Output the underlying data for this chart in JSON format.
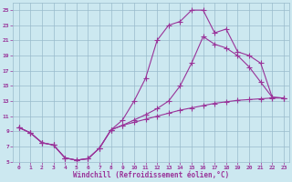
{
  "xlabel": "Windchill (Refroidissement éolien,°C)",
  "bg_color": "#cce8f0",
  "grid_color": "#99bbcc",
  "line_color": "#993399",
  "xlim": [
    -0.5,
    23.5
  ],
  "ylim": [
    5,
    26
  ],
  "yticks": [
    5,
    7,
    9,
    11,
    13,
    15,
    17,
    19,
    21,
    23,
    25
  ],
  "xticks": [
    0,
    1,
    2,
    3,
    4,
    5,
    6,
    7,
    8,
    9,
    10,
    11,
    12,
    13,
    14,
    15,
    16,
    17,
    18,
    19,
    20,
    21,
    22,
    23
  ],
  "curve1_x": [
    0,
    1,
    2,
    3,
    4,
    5,
    6,
    7,
    8,
    9,
    10,
    11,
    12,
    13,
    14,
    15,
    16,
    17,
    18,
    19,
    20,
    21,
    22,
    23
  ],
  "curve1_y": [
    9.5,
    8.8,
    7.5,
    7.2,
    5.5,
    5.2,
    5.4,
    6.8,
    9.2,
    9.8,
    10.2,
    10.6,
    11.0,
    11.4,
    11.8,
    12.1,
    12.4,
    12.7,
    12.9,
    13.1,
    13.2,
    13.3,
    13.4,
    13.4
  ],
  "curve2_x": [
    0,
    1,
    2,
    3,
    4,
    5,
    6,
    7,
    8,
    9,
    10,
    11,
    12,
    13,
    14,
    15,
    16,
    17,
    18,
    19,
    20,
    21,
    22,
    23
  ],
  "curve2_y": [
    9.5,
    8.8,
    7.5,
    7.2,
    5.5,
    5.2,
    5.4,
    6.8,
    9.2,
    9.8,
    10.5,
    11.2,
    12.0,
    13.0,
    15.0,
    18.0,
    21.5,
    20.5,
    20.0,
    19.0,
    17.5,
    15.5,
    13.5,
    13.4
  ],
  "curve3_x": [
    0,
    1,
    2,
    3,
    4,
    5,
    6,
    7,
    8,
    9,
    10,
    11,
    12,
    13,
    14,
    15,
    16,
    17,
    18,
    19,
    20,
    21,
    22,
    23
  ],
  "curve3_y": [
    9.5,
    8.8,
    7.5,
    7.2,
    5.5,
    5.2,
    5.4,
    6.8,
    9.2,
    10.5,
    13.0,
    16.0,
    21.0,
    23.0,
    23.5,
    25.0,
    25.0,
    22.0,
    22.5,
    19.5,
    19.0,
    18.0,
    13.5,
    13.4
  ],
  "marker": "+",
  "markersize": 4,
  "linewidth": 0.8
}
